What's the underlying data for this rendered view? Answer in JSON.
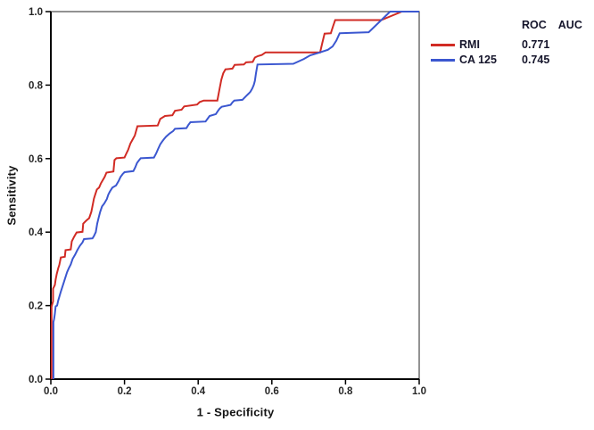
{
  "legend": {
    "header_col1": "ROC",
    "header_col2": "AUC",
    "entries": [
      {
        "label": "RMI",
        "value": "0.771",
        "color": "#d12b24"
      },
      {
        "label": "CA 125",
        "value": "0.745",
        "color": "#3b57d0"
      }
    ]
  },
  "chart_data": {
    "type": "line",
    "subtype": "roc-step-curves",
    "title": "",
    "xlabel": "1 - Specificity",
    "ylabel": "Sensitivity",
    "xlim": [
      0,
      1
    ],
    "ylim": [
      0,
      1
    ],
    "xticks": [
      0,
      0.2,
      0.4,
      0.6,
      0.8,
      1.0
    ],
    "yticks": [
      0,
      0.2,
      0.4,
      0.6,
      0.8,
      1.0
    ],
    "xtick_labels": [
      "0.0",
      "0.2",
      "0.4",
      "0.6",
      "0.8",
      "1.0"
    ],
    "ytick_labels": [
      "0.0",
      "0.2",
      "0.4",
      "0.6",
      "0.8",
      "1.0"
    ],
    "grid": false,
    "legend_position": "top-right-outside",
    "series": [
      {
        "name": "RMI",
        "auc": 0.771,
        "color": "#d12b24",
        "points": [
          [
            0.002,
            0.0
          ],
          [
            0.002,
            0.197
          ],
          [
            0.006,
            0.212
          ],
          [
            0.006,
            0.246
          ],
          [
            0.011,
            0.256
          ],
          [
            0.013,
            0.271
          ],
          [
            0.016,
            0.286
          ],
          [
            0.02,
            0.302
          ],
          [
            0.023,
            0.311
          ],
          [
            0.027,
            0.331
          ],
          [
            0.038,
            0.333
          ],
          [
            0.04,
            0.351
          ],
          [
            0.054,
            0.353
          ],
          [
            0.057,
            0.375
          ],
          [
            0.063,
            0.387
          ],
          [
            0.07,
            0.399
          ],
          [
            0.086,
            0.401
          ],
          [
            0.088,
            0.423
          ],
          [
            0.096,
            0.431
          ],
          [
            0.104,
            0.438
          ],
          [
            0.11,
            0.455
          ],
          [
            0.114,
            0.476
          ],
          [
            0.117,
            0.491
          ],
          [
            0.12,
            0.501
          ],
          [
            0.125,
            0.516
          ],
          [
            0.131,
            0.521
          ],
          [
            0.136,
            0.533
          ],
          [
            0.146,
            0.55
          ],
          [
            0.151,
            0.562
          ],
          [
            0.17,
            0.565
          ],
          [
            0.173,
            0.596
          ],
          [
            0.178,
            0.601
          ],
          [
            0.2,
            0.603
          ],
          [
            0.205,
            0.614
          ],
          [
            0.21,
            0.624
          ],
          [
            0.216,
            0.641
          ],
          [
            0.222,
            0.652
          ],
          [
            0.228,
            0.663
          ],
          [
            0.235,
            0.688
          ],
          [
            0.29,
            0.69
          ],
          [
            0.297,
            0.708
          ],
          [
            0.31,
            0.716
          ],
          [
            0.33,
            0.718
          ],
          [
            0.337,
            0.73
          ],
          [
            0.355,
            0.733
          ],
          [
            0.362,
            0.742
          ],
          [
            0.397,
            0.747
          ],
          [
            0.404,
            0.754
          ],
          [
            0.415,
            0.758
          ],
          [
            0.452,
            0.758
          ],
          [
            0.458,
            0.79
          ],
          [
            0.463,
            0.815
          ],
          [
            0.468,
            0.832
          ],
          [
            0.474,
            0.843
          ],
          [
            0.493,
            0.845
          ],
          [
            0.499,
            0.855
          ],
          [
            0.524,
            0.856
          ],
          [
            0.53,
            0.862
          ],
          [
            0.548,
            0.863
          ],
          [
            0.554,
            0.875
          ],
          [
            0.562,
            0.879
          ],
          [
            0.573,
            0.882
          ],
          [
            0.583,
            0.889
          ],
          [
            0.731,
            0.889
          ],
          [
            0.737,
            0.915
          ],
          [
            0.743,
            0.94
          ],
          [
            0.76,
            0.941
          ],
          [
            0.766,
            0.96
          ],
          [
            0.772,
            0.977
          ],
          [
            0.897,
            0.977
          ],
          [
            0.953,
            1.0
          ],
          [
            1.0,
            1.0
          ]
        ]
      },
      {
        "name": "CA 125",
        "auc": 0.745,
        "color": "#3b57d0",
        "points": [
          [
            0.007,
            0.0
          ],
          [
            0.007,
            0.155
          ],
          [
            0.009,
            0.164
          ],
          [
            0.011,
            0.178
          ],
          [
            0.013,
            0.198
          ],
          [
            0.017,
            0.2
          ],
          [
            0.02,
            0.214
          ],
          [
            0.027,
            0.238
          ],
          [
            0.036,
            0.266
          ],
          [
            0.044,
            0.291
          ],
          [
            0.049,
            0.302
          ],
          [
            0.054,
            0.312
          ],
          [
            0.059,
            0.327
          ],
          [
            0.066,
            0.339
          ],
          [
            0.072,
            0.351
          ],
          [
            0.079,
            0.363
          ],
          [
            0.086,
            0.372
          ],
          [
            0.09,
            0.381
          ],
          [
            0.113,
            0.383
          ],
          [
            0.117,
            0.389
          ],
          [
            0.122,
            0.4
          ],
          [
            0.126,
            0.423
          ],
          [
            0.13,
            0.44
          ],
          [
            0.134,
            0.455
          ],
          [
            0.139,
            0.47
          ],
          [
            0.145,
            0.478
          ],
          [
            0.152,
            0.49
          ],
          [
            0.156,
            0.502
          ],
          [
            0.16,
            0.51
          ],
          [
            0.167,
            0.521
          ],
          [
            0.177,
            0.527
          ],
          [
            0.184,
            0.539
          ],
          [
            0.189,
            0.55
          ],
          [
            0.195,
            0.558
          ],
          [
            0.2,
            0.563
          ],
          [
            0.224,
            0.566
          ],
          [
            0.229,
            0.576
          ],
          [
            0.234,
            0.588
          ],
          [
            0.239,
            0.595
          ],
          [
            0.244,
            0.601
          ],
          [
            0.28,
            0.603
          ],
          [
            0.286,
            0.614
          ],
          [
            0.291,
            0.626
          ],
          [
            0.297,
            0.639
          ],
          [
            0.302,
            0.646
          ],
          [
            0.307,
            0.653
          ],
          [
            0.313,
            0.66
          ],
          [
            0.322,
            0.668
          ],
          [
            0.332,
            0.675
          ],
          [
            0.337,
            0.681
          ],
          [
            0.368,
            0.683
          ],
          [
            0.373,
            0.691
          ],
          [
            0.379,
            0.699
          ],
          [
            0.42,
            0.701
          ],
          [
            0.426,
            0.709
          ],
          [
            0.431,
            0.716
          ],
          [
            0.448,
            0.721
          ],
          [
            0.453,
            0.729
          ],
          [
            0.458,
            0.736
          ],
          [
            0.464,
            0.741
          ],
          [
            0.488,
            0.746
          ],
          [
            0.493,
            0.753
          ],
          [
            0.498,
            0.758
          ],
          [
            0.52,
            0.76
          ],
          [
            0.526,
            0.766
          ],
          [
            0.531,
            0.771
          ],
          [
            0.537,
            0.777
          ],
          [
            0.542,
            0.782
          ],
          [
            0.547,
            0.791
          ],
          [
            0.551,
            0.801
          ],
          [
            0.554,
            0.812
          ],
          [
            0.557,
            0.832
          ],
          [
            0.561,
            0.856
          ],
          [
            0.658,
            0.858
          ],
          [
            0.687,
            0.871
          ],
          [
            0.704,
            0.881
          ],
          [
            0.728,
            0.888
          ],
          [
            0.752,
            0.896
          ],
          [
            0.765,
            0.905
          ],
          [
            0.775,
            0.921
          ],
          [
            0.784,
            0.941
          ],
          [
            0.863,
            0.944
          ],
          [
            0.921,
            1.0
          ],
          [
            1.0,
            1.0
          ]
        ]
      }
    ]
  }
}
